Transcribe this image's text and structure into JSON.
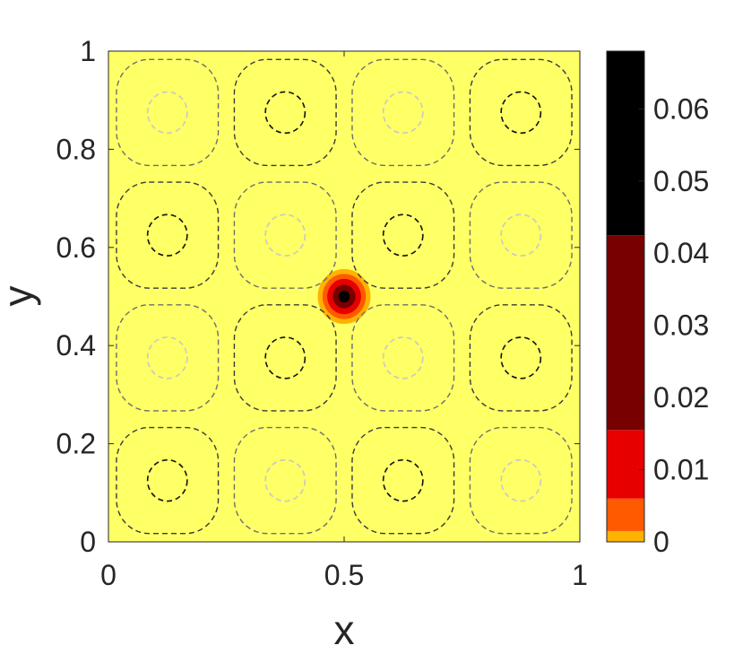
{
  "chart_data": {
    "type": "heatmap",
    "title": "",
    "xlabel": "x",
    "ylabel": "y",
    "xlim": [
      0,
      1
    ],
    "ylim": [
      0,
      1
    ],
    "xticks": [
      0,
      0.5,
      1
    ],
    "xtick_labels": [
      "0",
      "0.5",
      "1"
    ],
    "yticks": [
      0,
      0.2,
      0.4,
      0.6,
      0.8,
      1
    ],
    "ytick_labels": [
      "0",
      "0.2",
      "0.4",
      "0.6",
      "0.8",
      "1"
    ],
    "grid": false,
    "background_color": "#FFFF66",
    "colorbar": {
      "range": [
        0,
        0.068
      ],
      "ticks": [
        0,
        0.01,
        0.02,
        0.03,
        0.04,
        0.05,
        0.06
      ],
      "tick_labels": [
        "0",
        "0.01",
        "0.02",
        "0.03",
        "0.04",
        "0.05",
        "0.06"
      ],
      "levels": [
        {
          "from": 0,
          "to": 0.0015,
          "color": "#FFB300"
        },
        {
          "from": 0.0015,
          "to": 0.006,
          "color": "#FF5A00"
        },
        {
          "from": 0.006,
          "to": 0.0155,
          "color": "#E60000"
        },
        {
          "from": 0.0155,
          "to": 0.0425,
          "color": "#780000"
        },
        {
          "from": 0.0425,
          "to": 0.068,
          "color": "#000000"
        }
      ]
    },
    "blob": {
      "center": [
        0.5,
        0.5
      ],
      "rings": [
        {
          "radius": 0.056,
          "color": "#FFB300"
        },
        {
          "radius": 0.046,
          "color": "#FF5A00"
        },
        {
          "radius": 0.036,
          "color": "#E60000"
        },
        {
          "radius": 0.024,
          "color": "#780000"
        },
        {
          "radius": 0.012,
          "color": "#000000"
        }
      ]
    },
    "contours": {
      "cells": 4,
      "level_colors": {
        "dark": "#111111",
        "light": "#C8C8C8",
        "outer": "#6E6E6E"
      },
      "inner_radius": 0.042,
      "outer_half_width": 0.108,
      "dark_cells_col_row": [
        [
          0,
          0
        ],
        [
          2,
          0
        ],
        [
          1,
          1
        ],
        [
          3,
          1
        ],
        [
          0,
          2
        ],
        [
          2,
          2
        ],
        [
          1,
          3
        ],
        [
          3,
          3
        ]
      ]
    }
  }
}
